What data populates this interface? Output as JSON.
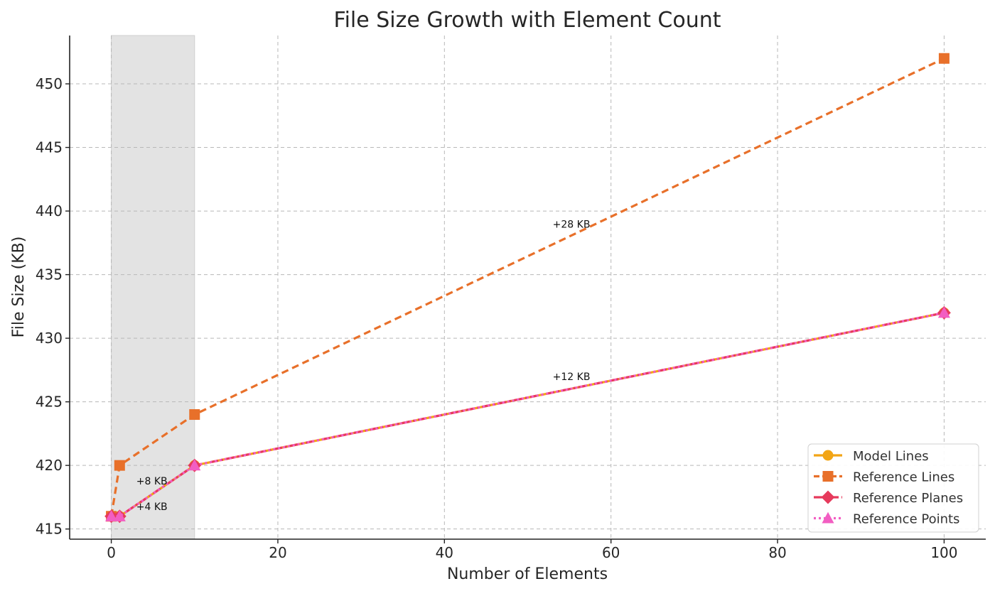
{
  "chart_data": {
    "type": "line",
    "title": "File Size Growth with Element Count",
    "xlabel": "Number of Elements",
    "ylabel": "File Size (KB)",
    "xlim": [
      -5,
      105
    ],
    "ylim": [
      414.2,
      453.8
    ],
    "xticks": [
      0,
      20,
      40,
      60,
      80,
      100
    ],
    "yticks": [
      415,
      420,
      425,
      430,
      435,
      440,
      445,
      450
    ],
    "grid": true,
    "legend_position": "lower-right",
    "x": [
      0,
      1,
      10,
      100
    ],
    "series": [
      {
        "name": "Model Lines",
        "values": [
          416,
          416,
          420,
          432
        ],
        "color": "#f2a516",
        "linestyle": "solid",
        "marker": "circle"
      },
      {
        "name": "Reference Lines",
        "values": [
          416,
          420,
          424,
          452
        ],
        "color": "#e8702a",
        "linestyle": "dashed",
        "marker": "square"
      },
      {
        "name": "Reference Planes",
        "values": [
          416,
          416,
          420,
          432
        ],
        "color": "#e63a5c",
        "linestyle": "dashdot",
        "marker": "diamond"
      },
      {
        "name": "Reference Points",
        "values": [
          416,
          416,
          420,
          432
        ],
        "color": "#f25ec2",
        "linestyle": "dotted",
        "marker": "triangle"
      }
    ],
    "shaded_region": {
      "x_range": [
        0,
        10
      ],
      "color": "#e3e3e3"
    },
    "annotations": [
      {
        "text": "+4 KB",
        "x": 3,
        "y": 416.5
      },
      {
        "text": "+8 KB",
        "x": 3,
        "y": 418.5
      },
      {
        "text": "+12 KB",
        "x": 53,
        "y": 426.7
      },
      {
        "text": "+28 KB",
        "x": 53,
        "y": 438.7
      }
    ]
  }
}
